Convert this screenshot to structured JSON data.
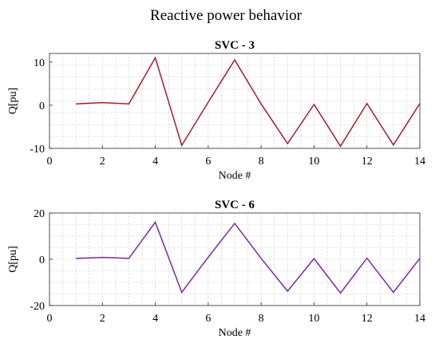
{
  "figure": {
    "suptitle": "Reactive power behavior"
  },
  "chart_data": [
    {
      "type": "line",
      "title": "SVC - 3",
      "xlabel": "Node #",
      "ylabel": "Q[pu]",
      "xlim": [
        0,
        14
      ],
      "ylim": [
        -10,
        12
      ],
      "xticks": [
        "0",
        "2",
        "4",
        "6",
        "8",
        "10",
        "12",
        "14"
      ],
      "yticks": [
        "-10",
        "0",
        "10"
      ],
      "grid": "minor dotted",
      "series": [
        {
          "color": "#a51c30",
          "x": [
            1,
            2,
            3,
            4,
            5,
            6,
            7,
            8,
            9,
            10,
            11,
            12,
            13,
            14
          ],
          "y": [
            0.3,
            0.6,
            0.3,
            11.0,
            -9.3,
            0.7,
            10.5,
            0.3,
            -8.9,
            0.2,
            -9.5,
            0.4,
            -9.2,
            0.4
          ]
        }
      ]
    },
    {
      "type": "line",
      "title": "SVC - 6",
      "xlabel": "Node #",
      "ylabel": "Q[pu]",
      "xlim": [
        0,
        14
      ],
      "ylim": [
        -20,
        20
      ],
      "xticks": [
        "0",
        "2",
        "4",
        "6",
        "8",
        "10",
        "12",
        "14"
      ],
      "yticks": [
        "-20",
        "0",
        "20"
      ],
      "grid": "minor dotted",
      "series": [
        {
          "color": "#7a2ca0",
          "x": [
            1,
            2,
            3,
            4,
            5,
            6,
            7,
            8,
            9,
            10,
            11,
            12,
            13,
            14
          ],
          "y": [
            0.4,
            0.8,
            0.4,
            16.0,
            -14.3,
            0.9,
            15.5,
            0.4,
            -13.8,
            0.3,
            -14.6,
            0.5,
            -14.3,
            0.4
          ]
        }
      ]
    }
  ]
}
